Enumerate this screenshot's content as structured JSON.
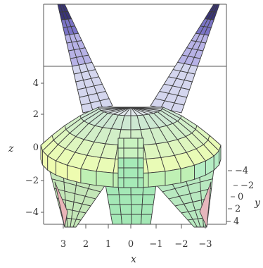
{
  "chart_data": {
    "type": "surface3d",
    "title": "",
    "axes": {
      "x": {
        "label": "x",
        "ticks": [
          "3",
          "2",
          "1",
          "0",
          "−1",
          "−2",
          "−3"
        ]
      },
      "y": {
        "label": "y",
        "ticks": [
          "−4",
          "−2",
          "0",
          "2",
          "4"
        ]
      },
      "z": {
        "label": "z",
        "ticks": [
          "4",
          "2",
          "0",
          "−2",
          "−4"
        ],
        "range": [
          -5,
          7
        ]
      }
    },
    "box": "framed",
    "gradient_colors": [
      "#efffa6",
      "#a9f2b6",
      "#cbc2f2",
      "#2b2a6a"
    ],
    "grid": false,
    "legend": "none"
  }
}
